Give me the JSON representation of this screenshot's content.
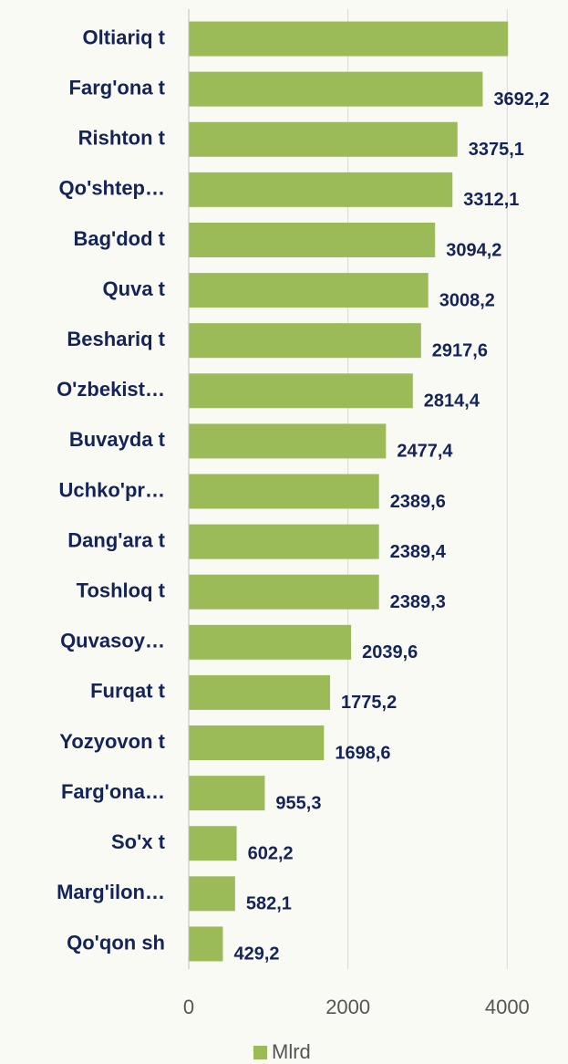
{
  "chart_data": {
    "type": "bar",
    "orientation": "horizontal",
    "categories": [
      "Oltiariq t",
      "Farg'ona t",
      "Rishton t",
      "Qo'shtep…",
      "Bag'dod t",
      "Quva t",
      "Beshariq t",
      "O'zbekist…",
      "Buvayda t",
      "Uchko'pr…",
      "Dang'ara t",
      "Toshloq t",
      "Quvasoy…",
      "Furqat t",
      "Yozyovon t",
      "Farg'ona…",
      "So'x t",
      "Marg'ilon…",
      "Qo'qon sh"
    ],
    "series": [
      {
        "name": "Mlrd",
        "color": "#9bbb59",
        "values": [
          4010,
          3692.2,
          3375.1,
          3312.1,
          3094.2,
          3008.2,
          2917.6,
          2814.4,
          2477.4,
          2389.6,
          2389.4,
          2389.3,
          2039.6,
          1775.2,
          1698.6,
          955.3,
          602.2,
          582.1,
          429.2
        ],
        "value_labels": [
          null,
          "3692,2",
          "3375,1",
          "3312,1",
          "3094,2",
          "3008,2",
          "2917,6",
          "2814,4",
          "2477,4",
          "2389,6",
          "2389,4",
          "2389,3",
          "2039,6",
          "1775,2",
          "1698,6",
          "955,3",
          "602,2",
          "582,1",
          "429,2"
        ]
      }
    ],
    "xlim": [
      0,
      4500
    ],
    "xticks": [
      0,
      2000,
      4000
    ],
    "grid": true,
    "legend": "bottom"
  }
}
